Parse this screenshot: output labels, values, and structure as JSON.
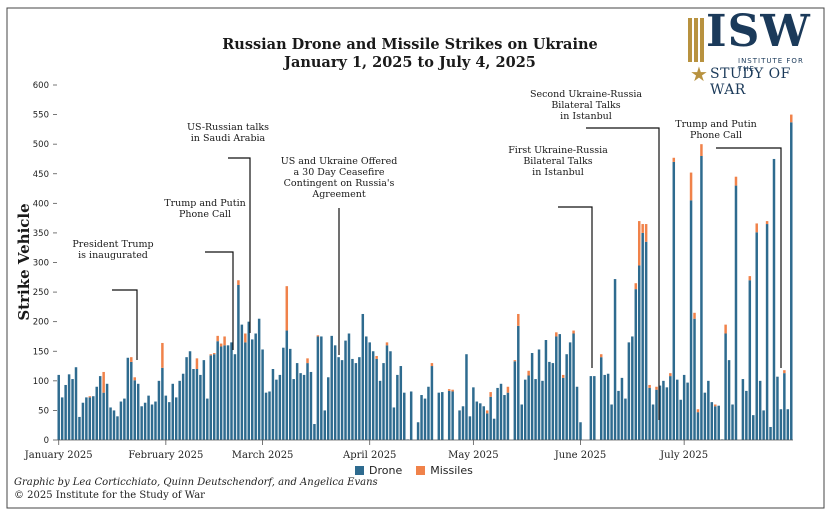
{
  "title_line1": "Russian Drone and Missile Strikes on Ukraine",
  "title_line2": "January 1, 2025 to July 4, 2025",
  "logo": {
    "brand": "ISW",
    "subtitle": "INSTITUTE FOR THE",
    "name": "STUDY OF WAR"
  },
  "credits": {
    "line1": "Graphic by Lea Corticchiato, Quinn Deutschendorf, and Angelica Evans",
    "line2": "© 2025 Institute for the Study of War"
  },
  "colors": {
    "drone": "#2e6b8f",
    "missiles": "#f0824a",
    "axis": "#555555",
    "text": "#222222"
  },
  "chart_data": {
    "type": "bar",
    "stacked": true,
    "ylabel": "Strike Vehicle",
    "ylim": [
      0,
      600
    ],
    "yticks": [
      0,
      50,
      100,
      150,
      200,
      250,
      300,
      350,
      400,
      450,
      500,
      550,
      600
    ],
    "x_start": "2025-01-01",
    "x_end": "2025-07-04",
    "month_ticks": [
      {
        "label": "January 2025",
        "day": 1
      },
      {
        "label": "February 2025",
        "day": 32
      },
      {
        "label": "March 2025",
        "day": 60
      },
      {
        "label": "April 2025",
        "day": 91
      },
      {
        "label": "May 2025",
        "day": 121
      },
      {
        "label": "June 2025",
        "day": 152
      },
      {
        "label": "July 2025",
        "day": 182
      }
    ],
    "legend": [
      {
        "name": "Drone",
        "color": "#2e6b8f"
      },
      {
        "name": "Missiles",
        "color": "#f0824a"
      }
    ],
    "series": [
      {
        "name": "Drone",
        "values": [
          110,
          72,
          93,
          111,
          103,
          123,
          39,
          63,
          72,
          72,
          74,
          90,
          108,
          80,
          95,
          55,
          50,
          40,
          65,
          70,
          139,
          132,
          101,
          95,
          57,
          63,
          75,
          60,
          65,
          100,
          122,
          75,
          64,
          95,
          72,
          100,
          112,
          140,
          150,
          120,
          120,
          110,
          135,
          70,
          143,
          145,
          167,
          158,
          160,
          160,
          165,
          145,
          262,
          195,
          165,
          200,
          170,
          180,
          205,
          153,
          80,
          82,
          120,
          102,
          110,
          156,
          185,
          154,
          103,
          130,
          113,
          110,
          130,
          115,
          27,
          175,
          175,
          50,
          106,
          176,
          160,
          140,
          135,
          168,
          180,
          137,
          130,
          140,
          213,
          175,
          165,
          150,
          137,
          100,
          130,
          160,
          150,
          55,
          110,
          125,
          80,
          1,
          82,
          0,
          30,
          76,
          70,
          90,
          125,
          0,
          80,
          81,
          0,
          83,
          82,
          0,
          50,
          57,
          145,
          40,
          89,
          65,
          62,
          57,
          45,
          73,
          36,
          88,
          95,
          76,
          80,
          0,
          133,
          193,
          60,
          102,
          109,
          147,
          103,
          153,
          100,
          169,
          132,
          130,
          175,
          179,
          105,
          145,
          165,
          180,
          90,
          30,
          0,
          0,
          108,
          108,
          0,
          140,
          110,
          112,
          60,
          272,
          83,
          105,
          70,
          165,
          175,
          255,
          295,
          350,
          335,
          88,
          60,
          85,
          92,
          100,
          89,
          108,
          470,
          102,
          68,
          110,
          97,
          405,
          205,
          47,
          480,
          80,
          100,
          64,
          57,
          58,
          1,
          180,
          135,
          60,
          430,
          0,
          103,
          83,
          270,
          42,
          351,
          100,
          50,
          365,
          22,
          475,
          107,
          52,
          113,
          52,
          537
        ]
      },
      {
        "name": "Missiles",
        "values": [
          0,
          0,
          0,
          0,
          0,
          0,
          0,
          0,
          0,
          2,
          0,
          0,
          0,
          35,
          0,
          0,
          0,
          0,
          0,
          0,
          0,
          8,
          5,
          0,
          0,
          0,
          0,
          0,
          0,
          0,
          42,
          0,
          0,
          0,
          0,
          0,
          0,
          0,
          0,
          0,
          18,
          0,
          0,
          0,
          2,
          2,
          9,
          5,
          15,
          0,
          0,
          0,
          8,
          0,
          15,
          0,
          0,
          0,
          0,
          0,
          0,
          0,
          0,
          0,
          0,
          0,
          75,
          0,
          0,
          0,
          0,
          0,
          8,
          0,
          0,
          2,
          0,
          0,
          0,
          0,
          0,
          0,
          0,
          0,
          0,
          0,
          0,
          0,
          0,
          0,
          0,
          0,
          5,
          0,
          0,
          5,
          0,
          0,
          0,
          0,
          0,
          0,
          0,
          0,
          0,
          0,
          0,
          0,
          5,
          0,
          0,
          0,
          0,
          3,
          3,
          0,
          0,
          0,
          0,
          0,
          0,
          0,
          0,
          0,
          5,
          8,
          0,
          0,
          0,
          0,
          10,
          0,
          2,
          20,
          0,
          0,
          8,
          0,
          0,
          0,
          0,
          0,
          0,
          0,
          7,
          0,
          5,
          0,
          0,
          5,
          0,
          0,
          0,
          0,
          0,
          0,
          0,
          5,
          0,
          0,
          0,
          0,
          0,
          0,
          0,
          0,
          0,
          10,
          75,
          15,
          30,
          5,
          0,
          5,
          0,
          0,
          0,
          5,
          7,
          0,
          0,
          0,
          0,
          47,
          10,
          5,
          20,
          0,
          0,
          0,
          3,
          0,
          0,
          15,
          0,
          0,
          15,
          0,
          0,
          0,
          7,
          0,
          15,
          0,
          0,
          5,
          0,
          0,
          0,
          0,
          5,
          0,
          13
        ]
      }
    ],
    "annotations": [
      {
        "text": [
          "President Trump",
          "is inaugurated"
        ],
        "day": 20
      },
      {
        "text": [
          "Trump and Putin",
          "Phone Call"
        ],
        "day": 43
      },
      {
        "text": [
          "US-Russian talks",
          "in Saudi Arabia"
        ],
        "day": 48
      },
      {
        "text": [
          "US and Ukraine Offered",
          "a 30 Day Ceasefire",
          "Contingent on Russia's",
          "Agreement"
        ],
        "day": 71
      },
      {
        "text": [
          "First Ukraine-Russia",
          "Bilateral Talks",
          "in Istanbul"
        ],
        "day": 135
      },
      {
        "text": [
          "Second Ukraine-Russia",
          "Bilateral Talks",
          "in Istanbul"
        ],
        "day": 153
      },
      {
        "text": [
          "Trump and Putin",
          "Phone Call"
        ],
        "day": 180
      }
    ]
  }
}
